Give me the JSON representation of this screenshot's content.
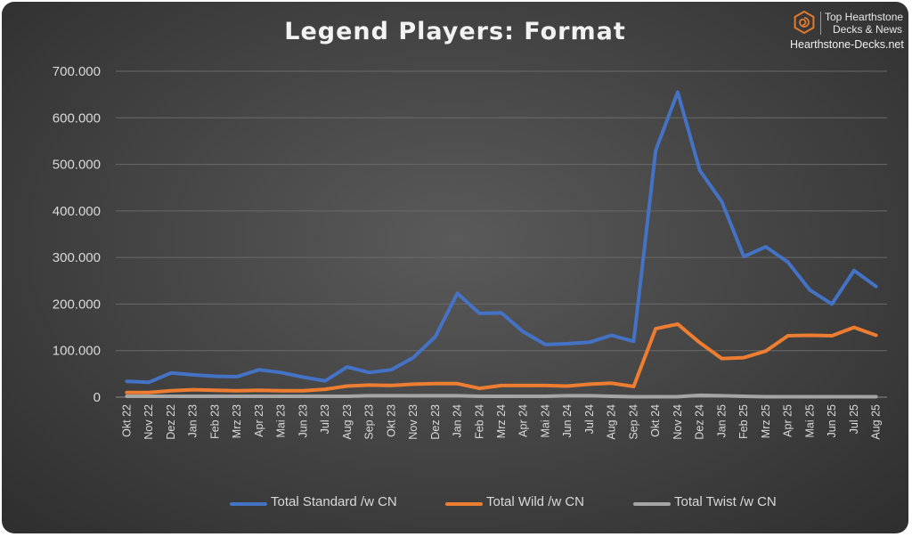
{
  "brand": {
    "line1": "Top Hearthstone",
    "line2": "Decks & News",
    "url": "Hearthstone-Decks.net",
    "logo_icon": "hexagon-spiral-icon",
    "accent": "#e07b2e"
  },
  "chart_data": {
    "type": "line",
    "title": "Legend Players: Format",
    "xlabel": "",
    "ylabel": "",
    "ylim": [
      0,
      700000
    ],
    "yticks": [
      0,
      100000,
      200000,
      300000,
      400000,
      500000,
      600000,
      700000
    ],
    "ytick_labels": [
      "0",
      "100.000",
      "200.000",
      "300.000",
      "400.000",
      "500.000",
      "600.000",
      "700.000"
    ],
    "grid": true,
    "legend_position": "bottom",
    "categories": [
      "Okt 22",
      "Nov 22",
      "Dez 22",
      "Jan 23",
      "Feb 23",
      "Mrz 23",
      "Apr 23",
      "Mai 23",
      "Jun 23",
      "Jul 23",
      "Aug 23",
      "Sep 23",
      "Okt 23",
      "Nov 23",
      "Dez 23",
      "Jan 24",
      "Feb 24",
      "Mrz 24",
      "Apr 24",
      "Mai 24",
      "Jun 24",
      "Jul 24",
      "Aug 24",
      "Sep 24",
      "Okt 24",
      "Nov 24",
      "Dez 24",
      "Jan 25",
      "Feb 25",
      "Mrz 25",
      "Apr 25",
      "Mai 25",
      "Jun 25",
      "Jul 25",
      "Aug 25"
    ],
    "series": [
      {
        "name": "Total Standard /w CN",
        "color": "#4472c4",
        "values": [
          34000,
          32000,
          52000,
          48000,
          45000,
          44000,
          59000,
          53000,
          43000,
          35000,
          65000,
          53000,
          59000,
          85000,
          130000,
          223000,
          180000,
          181000,
          140000,
          113000,
          115000,
          118000,
          133000,
          120000,
          530000,
          655000,
          487000,
          420000,
          302000,
          323000,
          290000,
          230000,
          200000,
          272000,
          238000
        ]
      },
      {
        "name": "Total Wild /w CN",
        "color": "#ed7d31",
        "values": [
          10000,
          10000,
          14000,
          16000,
          15000,
          14000,
          15000,
          14000,
          14000,
          17000,
          24000,
          26000,
          25000,
          28000,
          29000,
          29000,
          19000,
          25000,
          25000,
          25000,
          24000,
          28000,
          30000,
          23000,
          147000,
          157000,
          117000,
          83000,
          85000,
          99000,
          132000,
          133000,
          132000,
          150000,
          133000
        ]
      },
      {
        "name": "Total Twist /w CN",
        "color": "#a5a5a5",
        "values": [
          2000,
          2000,
          2000,
          2000,
          2000,
          2000,
          2000,
          2000,
          2000,
          2000,
          2000,
          3000,
          3000,
          3000,
          3000,
          3000,
          2000,
          2000,
          2000,
          2000,
          3000,
          3000,
          2000,
          1000,
          1000,
          1000,
          4000,
          3000,
          2000,
          1000,
          1000,
          1000,
          1000,
          1000,
          1000
        ]
      }
    ]
  }
}
